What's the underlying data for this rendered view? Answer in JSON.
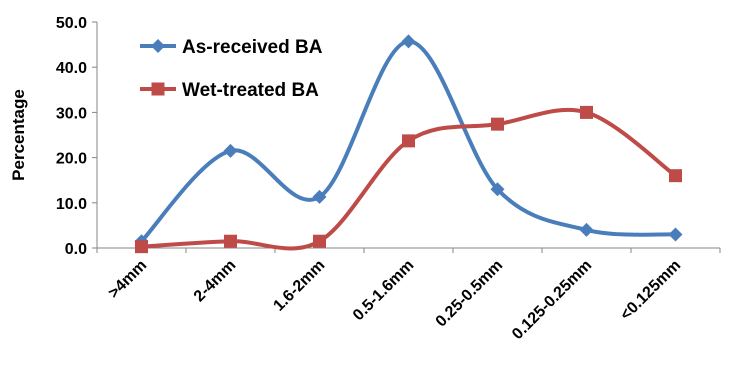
{
  "chart_data": {
    "type": "line",
    "smooth": true,
    "categories": [
      ">4mm",
      "2-4mm",
      "1.6-2mm",
      "0.5-1.6mm",
      "0.25-0.5mm",
      "0.125-0.25mm",
      "<0.125mm"
    ],
    "series": [
      {
        "name": "As-received BA",
        "values": [
          1.5,
          21.5,
          11.3,
          45.7,
          13.0,
          4.0,
          3.0
        ],
        "color": "#4a7ebb",
        "marker": "diamond"
      },
      {
        "name": "Wet-treated BA",
        "values": [
          0.3,
          1.5,
          1.5,
          23.7,
          27.4,
          30.0,
          16.0
        ],
        "color": "#be4b48",
        "marker": "square"
      }
    ],
    "xlabel": "",
    "ylabel": "Percentage",
    "ylim": [
      0,
      50
    ],
    "yticks": [
      "0.0",
      "10.0",
      "20.0",
      "30.0",
      "40.0",
      "50.0"
    ],
    "grid": false,
    "legend": "top-left"
  }
}
